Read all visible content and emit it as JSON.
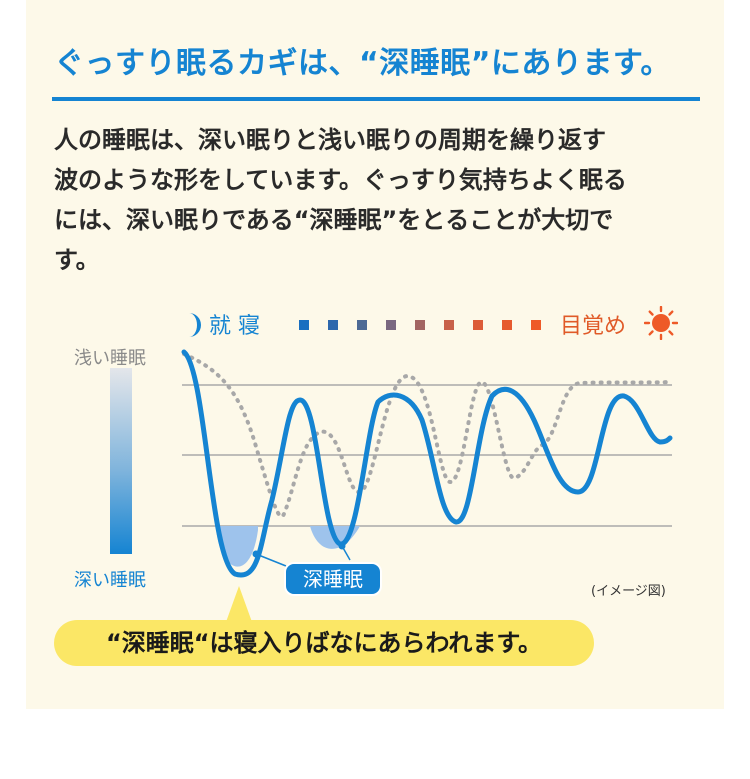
{
  "headline": "ぐっすり眠るカギは、“深睡眠”にあります。",
  "intro_lines": [
    "人の睡眠は、深い眠りと浅い眠りの周期を繰り返す",
    "波のような形をしています。ぐっすり気持ちよく眠る",
    "には、深い眠りである“深睡眠”をとることが大切で",
    "す。"
  ],
  "timeline": {
    "start_label": "就 寝",
    "end_label": "目覚め",
    "start_icon": "moon-icon",
    "end_icon": "sun-icon",
    "marker_colors": [
      "#1a6fc0",
      "#2d68ad",
      "#4d6a95",
      "#7a6880",
      "#a36562",
      "#c8614a",
      "#dc5c38",
      "#e65a2e",
      "#ee5a28"
    ]
  },
  "depth_scale": {
    "top_label": "浅い睡眠",
    "bottom_label": "深い睡眠"
  },
  "deep_sleep_label": "深睡眠",
  "image_note": "(イメージ図)",
  "callout": "“深睡眠“は寝入りばなにあらわれます。",
  "colors": {
    "accent_blue": "#1584d2",
    "sunrise_orange": "#ee5a28",
    "panel_cream": "#fdf9e9",
    "callout_yellow": "#fbe766",
    "dotted_curve": "#a8a8a8",
    "deep_fill": "#9ec3ec"
  }
}
